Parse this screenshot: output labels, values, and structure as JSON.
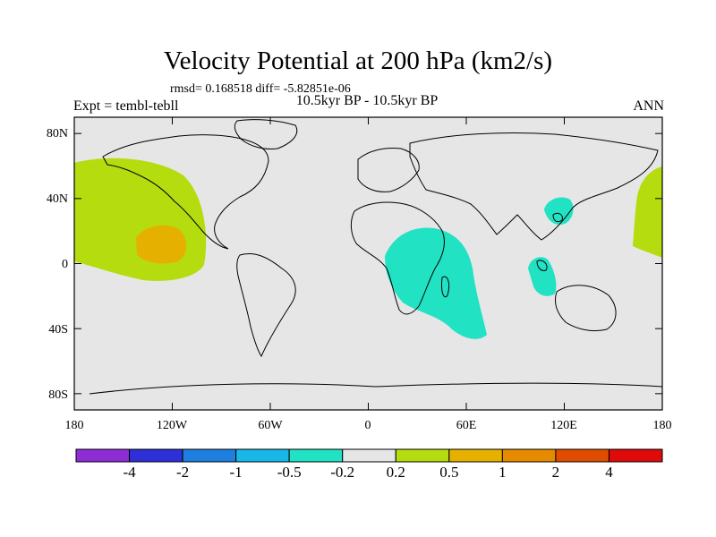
{
  "title": "Velocity Potential at 200 hPa (km2/s)",
  "stats": "rmsd= 0.168518 diff= -5.82851e-06",
  "period": "10.5kyr BP - 10.5kyr BP",
  "expt": "Expt = tembl-tebll",
  "season": "ANN",
  "lat_labels": [
    "80N",
    "40N",
    "0",
    "40S",
    "80S"
  ],
  "lon_labels": [
    "180",
    "120W",
    "60W",
    "0",
    "60E",
    "120E",
    "180"
  ],
  "colorbar": {
    "colors": [
      "#8e2cd6",
      "#2c30d6",
      "#1f7fe0",
      "#18b8e6",
      "#22e2c4",
      "#e6e6e6",
      "#b4dc0e",
      "#e6b000",
      "#e68a00",
      "#e04c00",
      "#e00a0a"
    ],
    "labels": [
      "-4",
      "-2",
      "-1",
      "-0.5",
      "-0.2",
      "0.2",
      "0.5",
      "1",
      "2",
      "4"
    ]
  },
  "chart_data": {
    "type": "contour-map",
    "title": "Velocity Potential at 200 hPa (km2/s)",
    "units": "km2/s",
    "levels": [
      -4,
      -2,
      -1,
      -0.5,
      -0.2,
      0.2,
      0.5,
      1,
      2,
      4
    ],
    "lon_range": [
      -180,
      180
    ],
    "lat_range": [
      -90,
      90
    ],
    "background_value_range": [
      -0.2,
      0.2
    ],
    "regions": [
      {
        "name": "central-pacific-positive",
        "range": [
          0.2,
          0.5
        ],
        "center_lon": -130,
        "center_lat": 15
      },
      {
        "name": "central-pacific-max",
        "range": [
          0.5,
          1
        ],
        "center_lon": -123,
        "center_lat": 13
      },
      {
        "name": "western-pacific-positive",
        "range": [
          0.2,
          0.5
        ],
        "center_lon": 173,
        "center_lat": 30
      },
      {
        "name": "africa-indian-ocean-negative",
        "range": [
          -0.5,
          -0.2
        ],
        "center_lon": 42,
        "center_lat": -10
      },
      {
        "name": "east-asia-negative",
        "range": [
          -0.5,
          -0.2
        ],
        "center_lon": 122,
        "center_lat": 33
      },
      {
        "name": "maritime-continent-negative",
        "range": [
          -0.5,
          -0.2
        ],
        "center_lon": 107,
        "center_lat": -5
      }
    ]
  }
}
